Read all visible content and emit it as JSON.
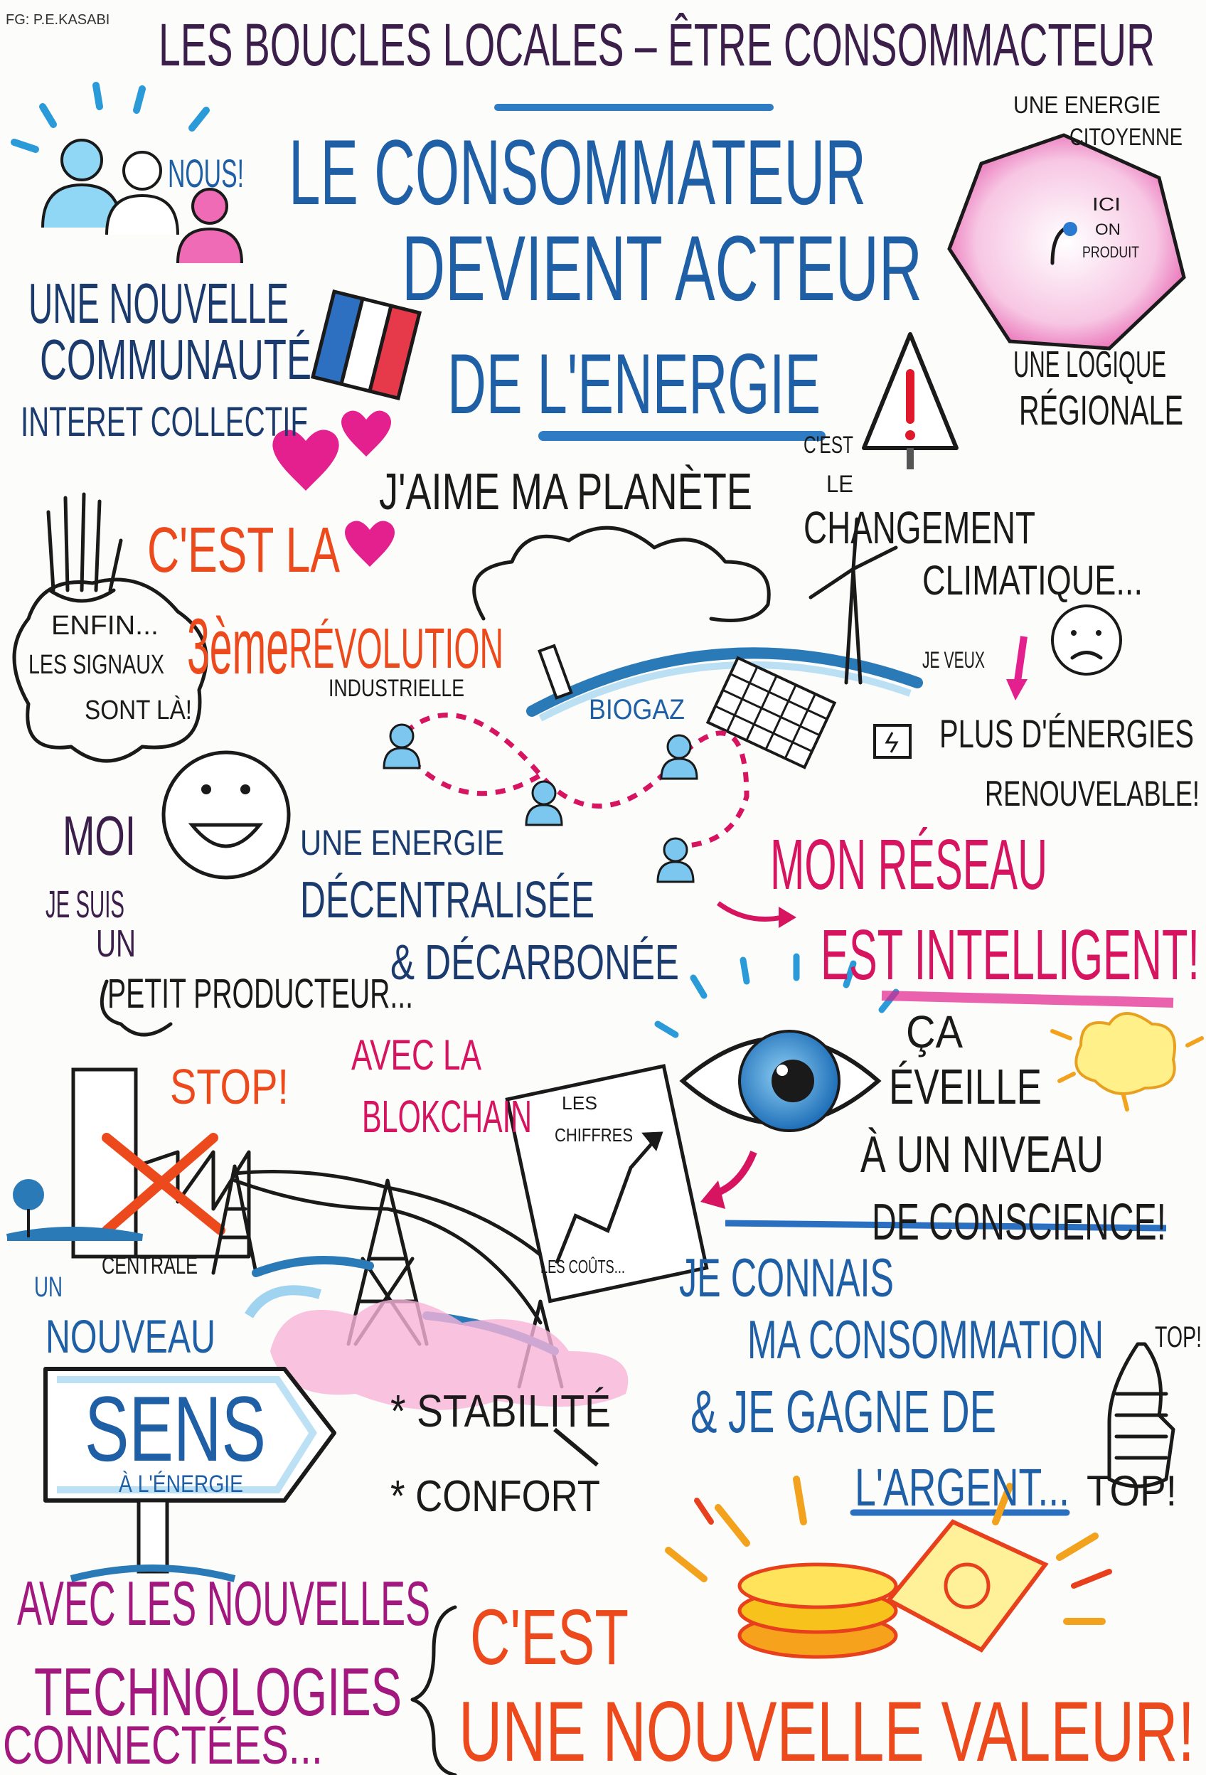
{
  "credit": "FG: P.E.KASABI",
  "title": "LES BOUCLES LOCALES – ÊTRE CONSOMMACTEUR",
  "labels": [
    "NOUS!",
    "UNE NOUVELLE",
    "COMMUNAUTÉ",
    "INTERET COLLECTIF",
    "LE CONSOMMATEUR",
    "DEVIENT ACTEUR",
    "DE L'ENERGIE",
    "UNE ENERGIE",
    "CITOYENNE",
    "ICI",
    "ON",
    "PRODUIT",
    "UNE LOGIQUE",
    "RÉGIONALE",
    "J'AIME MA PLANÈTE",
    "C'EST",
    "LE",
    "CHANGEMENT",
    "CLIMATIQUE...",
    "C'EST LA",
    "3ème",
    "RÉVOLUTION",
    "INDUSTRIELLE",
    "ENFIN...",
    "LES SIGNAUX",
    "SONT LÀ!",
    "JE VEUX",
    "PLUS D'ÉNERGIES",
    "RENOUVELABLE!",
    "BIOGAZ",
    "MOI",
    "JE SUIS",
    "UN",
    "PETIT PRODUCTEUR...",
    "UNE ENERGIE",
    "DÉCENTRALISÉE",
    "& DÉCARBONÉE",
    "MON RÉSEAU",
    "EST INTELLIGENT!",
    "STOP!",
    "AVEC LA",
    "BLOKCHAIN",
    "LES",
    "CHIFFRES",
    "LES COÛTS...",
    "ÇA",
    "ÉVEILLE",
    "À UN NIVEAU",
    "DE CONSCIENCE!",
    "CENTRALE",
    "UN",
    "NOUVEAU",
    "SENS",
    "À L'ÉNERGIE",
    "* STABILITÉ",
    "* CONFORT",
    "JE CONNAIS",
    "MA CONSOMMATION",
    "& JE GAGNE DE",
    "L'ARGENT...",
    "TOP!",
    "TOP!",
    "AVEC LES NOUVELLES",
    "TECHNOLOGIES",
    "CONNECTÉES...",
    "C'EST",
    "UNE NOUVELLE VALEUR!"
  ]
}
